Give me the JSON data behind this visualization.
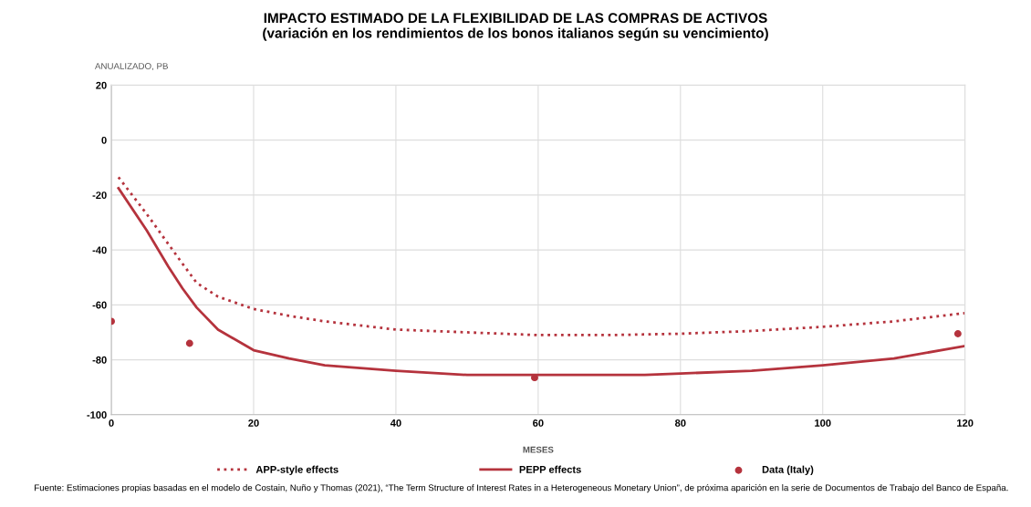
{
  "chart_data": {
    "type": "line",
    "title": "IMPACTO ESTIMADO DE LA FLEXIBILIDAD DE LAS COMPRAS DE ACTIVOS\n(variación en los rendimientos de los bonos italianos según su vencimiento)",
    "ylabel": "ANUALIZADO, PB",
    "xlabel": "MESES",
    "xlim": [
      0,
      120
    ],
    "xticks": [
      0,
      20,
      40,
      60,
      80,
      100,
      120
    ],
    "ylim": [
      -100,
      20
    ],
    "yticks": [
      -100,
      -80,
      -60,
      -40,
      -20,
      0,
      20
    ],
    "grid": true,
    "legend": "bottom",
    "series": [
      {
        "name": "APP-style effects",
        "color": "#b5333d",
        "line_style": "dotted",
        "marker": "none",
        "x": [
          1,
          5,
          10,
          12,
          15,
          20,
          25,
          30,
          40,
          50,
          60,
          70,
          80,
          90,
          100,
          110,
          120
        ],
        "values": [
          -13.5,
          -27,
          -45,
          -52,
          -57,
          -61.5,
          -64,
          -66,
          -69,
          -70,
          -71,
          -71,
          -70.5,
          -69.5,
          -68,
          -66,
          -63
        ]
      },
      {
        "name": "PEPP effects",
        "color": "#b5333d",
        "line_style": "solid",
        "marker": "none",
        "x": [
          1,
          5,
          8,
          10,
          12,
          15,
          20,
          25,
          30,
          40,
          50,
          60,
          75,
          80,
          90,
          100,
          110,
          120
        ],
        "values": [
          -17.5,
          -33,
          -46,
          -54,
          -61,
          -69,
          -76.5,
          -79.5,
          -82,
          -84,
          -85.5,
          -85.5,
          -85.5,
          -85,
          -84,
          -82,
          -79.5,
          -75
        ]
      },
      {
        "name": "Data (Italy)",
        "type": "scatter",
        "color": "#b5333d",
        "marker": "circle",
        "x": [
          0,
          11,
          59.5,
          119
        ],
        "values": [
          -66,
          -74,
          -86.5,
          -70.5
        ]
      }
    ],
    "annotations": [
      "Fuente: Estimaciones propias basadas en el modelo de Costain, Nuño y Thomas (2021), “The Term Structure of Interest Rates in a Heterogeneous Monetary Union”, de próxima aparición en la serie de Documentos de Trabajo del Banco de España."
    ]
  }
}
